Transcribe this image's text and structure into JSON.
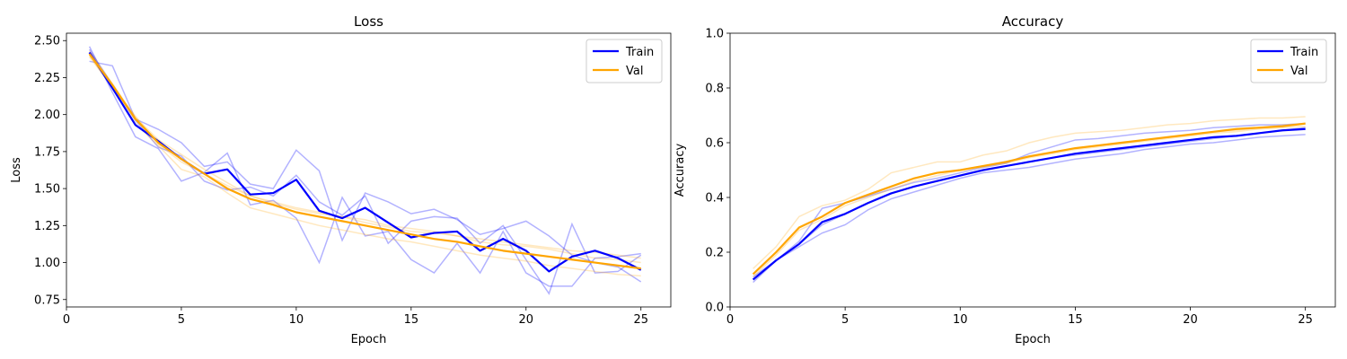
{
  "chart_data": [
    {
      "type": "line",
      "title": "Loss",
      "xlabel": "Epoch",
      "ylabel": "Loss",
      "xlim": [
        0,
        26.3
      ],
      "ylim": [
        0.7,
        2.55
      ],
      "xticks": [
        0,
        5,
        10,
        15,
        20,
        25
      ],
      "xtick_labels": [
        "0",
        "5",
        "10",
        "15",
        "20",
        "25"
      ],
      "yticks": [
        0.75,
        1.0,
        1.25,
        1.5,
        1.75,
        2.0,
        2.25,
        2.5
      ],
      "ytick_labels": [
        "0.75",
        "1.00",
        "1.25",
        "1.50",
        "1.75",
        "2.00",
        "2.25",
        "2.50"
      ],
      "grid": false,
      "legend": "top-right",
      "x": [
        1,
        2,
        3,
        4,
        5,
        6,
        7,
        8,
        9,
        10,
        11,
        12,
        13,
        14,
        15,
        16,
        17,
        18,
        19,
        20,
        21,
        22,
        23,
        24,
        25
      ],
      "series": [
        {
          "name": "Train",
          "color": "#0000ff",
          "values": [
            2.42,
            2.18,
            1.93,
            1.82,
            1.7,
            1.6,
            1.63,
            1.46,
            1.47,
            1.56,
            1.35,
            1.3,
            1.37,
            1.27,
            1.17,
            1.2,
            1.21,
            1.08,
            1.16,
            1.08,
            0.94,
            1.04,
            1.08,
            1.03,
            0.95
          ]
        },
        {
          "name": "Val",
          "color": "#ffa500",
          "values": [
            2.41,
            2.2,
            1.97,
            1.81,
            1.7,
            1.6,
            1.5,
            1.43,
            1.39,
            1.34,
            1.31,
            1.28,
            1.25,
            1.22,
            1.19,
            1.16,
            1.14,
            1.11,
            1.08,
            1.06,
            1.04,
            1.02,
            1.0,
            0.98,
            0.96
          ]
        }
      ],
      "faint_series": [
        {
          "color": "#0000ff",
          "values": [
            2.46,
            2.15,
            1.85,
            1.77,
            1.55,
            1.61,
            1.74,
            1.39,
            1.42,
            1.3,
            1.0,
            1.44,
            1.18,
            1.21,
            1.02,
            0.93,
            1.13,
            0.93,
            1.21,
            0.93,
            0.84,
            0.84,
            1.03,
            1.04,
            1.06
          ]
        },
        {
          "color": "#0000ff",
          "values": [
            2.36,
            2.33,
            1.97,
            1.9,
            1.81,
            1.65,
            1.68,
            1.53,
            1.5,
            1.76,
            1.62,
            1.15,
            1.47,
            1.41,
            1.33,
            1.36,
            1.29,
            1.19,
            1.23,
            1.28,
            1.18,
            1.05,
            1.0,
            0.97,
            0.87
          ]
        },
        {
          "color": "#0000ff",
          "values": [
            2.44,
            2.2,
            1.96,
            1.78,
            1.72,
            1.55,
            1.49,
            1.51,
            1.45,
            1.59,
            1.41,
            1.32,
            1.45,
            1.13,
            1.28,
            1.31,
            1.3,
            1.13,
            1.25,
            1.02,
            0.79,
            1.26,
            0.93,
            0.94,
            1.05
          ]
        },
        {
          "color": "#ffa500",
          "values": [
            2.43,
            2.21,
            1.98,
            1.83,
            1.73,
            1.63,
            1.54,
            1.45,
            1.4,
            1.36,
            1.33,
            1.31,
            1.27,
            1.24,
            1.21,
            1.2,
            1.18,
            1.14,
            1.12,
            1.11,
            1.09,
            1.06,
            1.03,
            1.02,
            1.0
          ]
        },
        {
          "color": "#ffa500",
          "values": [
            2.4,
            2.18,
            1.94,
            1.79,
            1.63,
            1.58,
            1.47,
            1.37,
            1.33,
            1.29,
            1.25,
            1.22,
            1.19,
            1.16,
            1.14,
            1.11,
            1.08,
            1.05,
            1.03,
            1.01,
            0.98,
            0.96,
            0.94,
            0.92,
            0.91
          ]
        },
        {
          "color": "#ffa500",
          "values": [
            2.39,
            2.19,
            1.99,
            1.8,
            1.68,
            1.6,
            1.52,
            1.45,
            1.41,
            1.37,
            1.34,
            1.31,
            1.29,
            1.25,
            1.23,
            1.21,
            1.18,
            1.16,
            1.14,
            1.12,
            1.1,
            1.08,
            1.07,
            1.05,
            1.03
          ]
        }
      ]
    },
    {
      "type": "line",
      "title": "Accuracy",
      "xlabel": "Epoch",
      "ylabel": "Accuracy",
      "xlim": [
        0,
        26.3
      ],
      "ylim": [
        0.0,
        1.0
      ],
      "xticks": [
        0,
        5,
        10,
        15,
        20,
        25
      ],
      "xtick_labels": [
        "0",
        "5",
        "10",
        "15",
        "20",
        "25"
      ],
      "yticks": [
        0.0,
        0.2,
        0.4,
        0.6,
        0.8,
        1.0
      ],
      "ytick_labels": [
        "0.0",
        "0.2",
        "0.4",
        "0.6",
        "0.8",
        "1.0"
      ],
      "grid": false,
      "legend": "top-right",
      "x": [
        1,
        2,
        3,
        4,
        5,
        6,
        7,
        8,
        9,
        10,
        11,
        12,
        13,
        14,
        15,
        16,
        17,
        18,
        19,
        20,
        21,
        22,
        23,
        24,
        25
      ],
      "series": [
        {
          "name": "Train",
          "color": "#0000ff",
          "values": [
            0.1,
            0.17,
            0.23,
            0.31,
            0.34,
            0.38,
            0.415,
            0.44,
            0.46,
            0.48,
            0.5,
            0.515,
            0.53,
            0.545,
            0.56,
            0.57,
            0.58,
            0.59,
            0.6,
            0.61,
            0.62,
            0.625,
            0.635,
            0.645,
            0.65
          ]
        },
        {
          "name": "Val",
          "color": "#ffa500",
          "values": [
            0.12,
            0.2,
            0.29,
            0.33,
            0.38,
            0.41,
            0.44,
            0.47,
            0.49,
            0.5,
            0.515,
            0.53,
            0.55,
            0.565,
            0.58,
            0.59,
            0.6,
            0.61,
            0.62,
            0.63,
            0.64,
            0.65,
            0.655,
            0.66,
            0.67
          ]
        }
      ],
      "faint_series": [
        {
          "color": "#0000ff",
          "values": [
            0.09,
            0.17,
            0.22,
            0.27,
            0.3,
            0.355,
            0.395,
            0.42,
            0.445,
            0.47,
            0.49,
            0.5,
            0.51,
            0.525,
            0.54,
            0.55,
            0.56,
            0.575,
            0.585,
            0.595,
            0.6,
            0.61,
            0.62,
            0.625,
            0.63
          ]
        },
        {
          "color": "#0000ff",
          "values": [
            0.11,
            0.17,
            0.24,
            0.36,
            0.38,
            0.405,
            0.43,
            0.455,
            0.47,
            0.49,
            0.51,
            0.525,
            0.56,
            0.585,
            0.61,
            0.615,
            0.625,
            0.635,
            0.64,
            0.645,
            0.655,
            0.66,
            0.665,
            0.665,
            0.67
          ]
        },
        {
          "color": "#0000ff",
          "values": [
            0.1,
            0.17,
            0.23,
            0.3,
            0.34,
            0.38,
            0.415,
            0.44,
            0.46,
            0.48,
            0.5,
            0.515,
            0.53,
            0.545,
            0.555,
            0.565,
            0.575,
            0.585,
            0.595,
            0.605,
            0.615,
            0.625,
            0.635,
            0.645,
            0.655
          ]
        },
        {
          "color": "#ffa500",
          "values": [
            0.14,
            0.22,
            0.33,
            0.37,
            0.39,
            0.43,
            0.49,
            0.51,
            0.53,
            0.53,
            0.555,
            0.57,
            0.6,
            0.62,
            0.635,
            0.64,
            0.645,
            0.655,
            0.665,
            0.67,
            0.68,
            0.685,
            0.69,
            0.69,
            0.695
          ]
        },
        {
          "color": "#ffa500",
          "values": [
            0.12,
            0.2,
            0.29,
            0.33,
            0.38,
            0.41,
            0.44,
            0.47,
            0.49,
            0.5,
            0.515,
            0.53,
            0.55,
            0.565,
            0.58,
            0.59,
            0.6,
            0.61,
            0.62,
            0.63,
            0.64,
            0.645,
            0.655,
            0.665,
            0.67
          ]
        },
        {
          "color": "#ffa500",
          "values": [
            0.11,
            0.19,
            0.28,
            0.32,
            0.37,
            0.4,
            0.43,
            0.46,
            0.48,
            0.5,
            0.51,
            0.525,
            0.545,
            0.56,
            0.575,
            0.585,
            0.595,
            0.605,
            0.615,
            0.625,
            0.635,
            0.64,
            0.65,
            0.655,
            0.66
          ]
        }
      ]
    }
  ]
}
